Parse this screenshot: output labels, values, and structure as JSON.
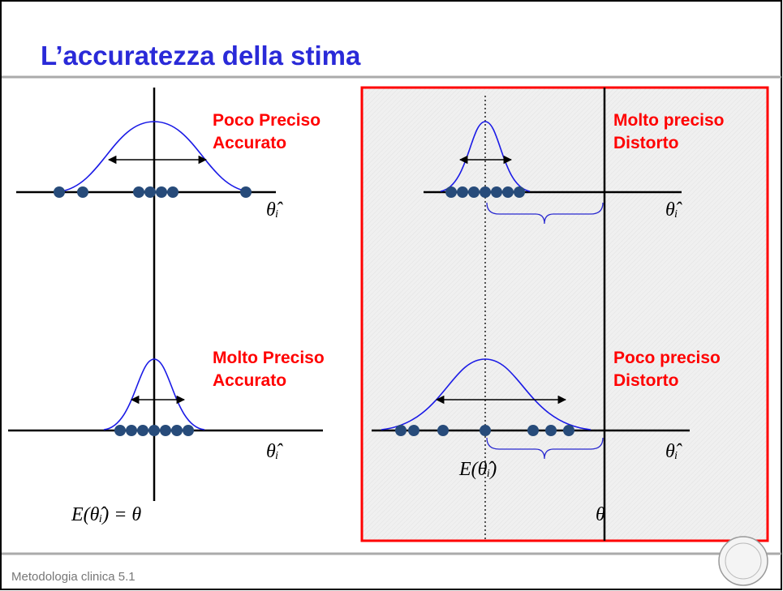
{
  "title": "L’accuratezza della stima",
  "panels": [
    {
      "line1": "Poco Preciso",
      "line2": "Accurato",
      "axis_symbol": "θ̂ᵢ"
    },
    {
      "line1": "Molto Preciso",
      "line2": "Accurato",
      "axis_symbol": "θ̂ᵢ"
    },
    {
      "line1": "Molto preciso",
      "line2": "Distorto",
      "axis_symbol": "θ̂ᵢ"
    },
    {
      "line1": "Poco preciso",
      "line2": "Distorto",
      "axis_symbol": "θ̂ᵢ"
    }
  ],
  "expectation_equals_theta": "E(θ̂ᵢ) = θ",
  "expectation": "E(θ̂ᵢ)",
  "theta": "θ",
  "footer": "Metodologia clinica 5.1"
}
